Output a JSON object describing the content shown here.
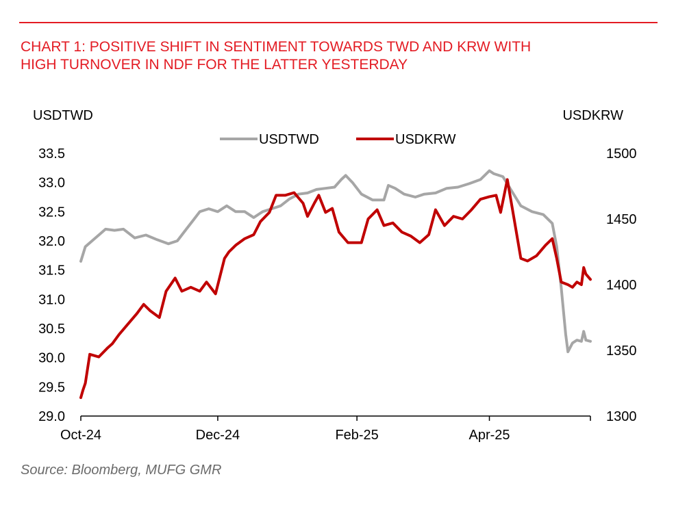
{
  "title_lines": [
    "CHART 1: POSITIVE SHIFT IN SENTIMENT TOWARDS TWD AND KRW WITH",
    "HIGH TURNOVER IN NDF FOR THE LATTER YESTERDAY"
  ],
  "source": "Source: Bloomberg, MUFG GMR",
  "colors": {
    "accent": "#e31b23",
    "usdtwd": "#a6a6a6",
    "usdkrw": "#c00000"
  },
  "chart_data": {
    "type": "line",
    "left_axis_label": "USDTWD",
    "right_axis_label": "USDKRW",
    "left_ylim": [
      29.0,
      33.5
    ],
    "left_ticks": [
      "33.5",
      "33.0",
      "32.5",
      "32.0",
      "31.5",
      "31.0",
      "30.5",
      "30.0",
      "29.5",
      "29.0"
    ],
    "right_ylim": [
      1300,
      1500
    ],
    "right_ticks": [
      "1500",
      "1450",
      "1400",
      "1350",
      "1300"
    ],
    "x_ticks": [
      "Oct-24",
      "Dec-24",
      "Feb-25",
      "Apr-25"
    ],
    "x_tick_dates": [
      "2024-10-01",
      "2024-12-01",
      "2025-02-01",
      "2025-04-01"
    ],
    "x_range": [
      "2024-10-01",
      "2025-05-16"
    ],
    "legend_position": "top-center",
    "grid": false,
    "series": [
      {
        "name": "USDTWD",
        "axis": "left",
        "points": [
          [
            "2024-10-01",
            31.65
          ],
          [
            "2024-10-03",
            31.9
          ],
          [
            "2024-10-06",
            32.0
          ],
          [
            "2024-10-09",
            32.1
          ],
          [
            "2024-10-12",
            32.2
          ],
          [
            "2024-10-16",
            32.18
          ],
          [
            "2024-10-20",
            32.2
          ],
          [
            "2024-10-25",
            32.05
          ],
          [
            "2024-10-30",
            32.1
          ],
          [
            "2024-11-04",
            32.02
          ],
          [
            "2024-11-09",
            31.95
          ],
          [
            "2024-11-13",
            32.0
          ],
          [
            "2024-11-17",
            32.2
          ],
          [
            "2024-11-20",
            32.35
          ],
          [
            "2024-11-23",
            32.5
          ],
          [
            "2024-11-27",
            32.55
          ],
          [
            "2024-12-01",
            32.5
          ],
          [
            "2024-12-05",
            32.6
          ],
          [
            "2024-12-09",
            32.5
          ],
          [
            "2024-12-13",
            32.5
          ],
          [
            "2024-12-17",
            32.4
          ],
          [
            "2024-12-21",
            32.5
          ],
          [
            "2024-12-25",
            32.55
          ],
          [
            "2024-12-29",
            32.6
          ],
          [
            "2025-01-02",
            32.72
          ],
          [
            "2025-01-06",
            32.8
          ],
          [
            "2025-01-10",
            32.82
          ],
          [
            "2025-01-14",
            32.88
          ],
          [
            "2025-01-18",
            32.9
          ],
          [
            "2025-01-22",
            32.92
          ],
          [
            "2025-01-25",
            33.05
          ],
          [
            "2025-01-27",
            33.12
          ],
          [
            "2025-01-30",
            33.0
          ],
          [
            "2025-02-03",
            32.8
          ],
          [
            "2025-02-08",
            32.7
          ],
          [
            "2025-02-13",
            32.7
          ],
          [
            "2025-02-15",
            32.95
          ],
          [
            "2025-02-18",
            32.9
          ],
          [
            "2025-02-22",
            32.8
          ],
          [
            "2025-02-27",
            32.75
          ],
          [
            "2025-03-03",
            32.8
          ],
          [
            "2025-03-08",
            32.82
          ],
          [
            "2025-03-13",
            32.9
          ],
          [
            "2025-03-18",
            32.92
          ],
          [
            "2025-03-23",
            32.98
          ],
          [
            "2025-03-28",
            33.05
          ],
          [
            "2025-04-01",
            33.2
          ],
          [
            "2025-04-03",
            33.15
          ],
          [
            "2025-04-07",
            33.1
          ],
          [
            "2025-04-11",
            32.85
          ],
          [
            "2025-04-15",
            32.6
          ],
          [
            "2025-04-20",
            32.5
          ],
          [
            "2025-04-25",
            32.45
          ],
          [
            "2025-04-29",
            32.3
          ],
          [
            "2025-05-01",
            31.9
          ],
          [
            "2025-05-03",
            31.2
          ],
          [
            "2025-05-05",
            30.4
          ],
          [
            "2025-05-06",
            30.1
          ],
          [
            "2025-05-08",
            30.25
          ],
          [
            "2025-05-10",
            30.3
          ],
          [
            "2025-05-12",
            30.28
          ],
          [
            "2025-05-13",
            30.45
          ],
          [
            "2025-05-14",
            30.3
          ],
          [
            "2025-05-16",
            30.28
          ]
        ]
      },
      {
        "name": "USDKRW",
        "axis": "right",
        "points": [
          [
            "2024-10-01",
            1314
          ],
          [
            "2024-10-02",
            1320
          ],
          [
            "2024-10-03",
            1325
          ],
          [
            "2024-10-05",
            1347
          ],
          [
            "2024-10-09",
            1345
          ],
          [
            "2024-10-13",
            1352
          ],
          [
            "2024-10-15",
            1355
          ],
          [
            "2024-10-18",
            1362
          ],
          [
            "2024-10-22",
            1370
          ],
          [
            "2024-10-26",
            1378
          ],
          [
            "2024-10-29",
            1385
          ],
          [
            "2024-11-01",
            1380
          ],
          [
            "2024-11-05",
            1375
          ],
          [
            "2024-11-08",
            1395
          ],
          [
            "2024-11-10",
            1400
          ],
          [
            "2024-11-12",
            1405
          ],
          [
            "2024-11-15",
            1395
          ],
          [
            "2024-11-19",
            1398
          ],
          [
            "2024-11-23",
            1395
          ],
          [
            "2024-11-26",
            1402
          ],
          [
            "2024-11-30",
            1393
          ],
          [
            "2024-12-04",
            1420
          ],
          [
            "2024-12-06",
            1425
          ],
          [
            "2024-12-09",
            1430
          ],
          [
            "2024-12-13",
            1435
          ],
          [
            "2024-12-17",
            1438
          ],
          [
            "2024-12-20",
            1448
          ],
          [
            "2024-12-24",
            1455
          ],
          [
            "2024-12-27",
            1468
          ],
          [
            "2024-12-31",
            1468
          ],
          [
            "2025-01-04",
            1470
          ],
          [
            "2025-01-08",
            1462
          ],
          [
            "2025-01-10",
            1452
          ],
          [
            "2025-01-13",
            1462
          ],
          [
            "2025-01-15",
            1468
          ],
          [
            "2025-01-18",
            1455
          ],
          [
            "2025-01-21",
            1458
          ],
          [
            "2025-01-24",
            1440
          ],
          [
            "2025-01-28",
            1432
          ],
          [
            "2025-02-03",
            1432
          ],
          [
            "2025-02-06",
            1450
          ],
          [
            "2025-02-10",
            1457
          ],
          [
            "2025-02-13",
            1445
          ],
          [
            "2025-02-17",
            1447
          ],
          [
            "2025-02-21",
            1440
          ],
          [
            "2025-02-25",
            1437
          ],
          [
            "2025-03-01",
            1432
          ],
          [
            "2025-03-05",
            1438
          ],
          [
            "2025-03-08",
            1457
          ],
          [
            "2025-03-12",
            1445
          ],
          [
            "2025-03-16",
            1452
          ],
          [
            "2025-03-20",
            1450
          ],
          [
            "2025-03-24",
            1457
          ],
          [
            "2025-03-28",
            1465
          ],
          [
            "2025-04-01",
            1467
          ],
          [
            "2025-04-04",
            1468
          ],
          [
            "2025-04-06",
            1455
          ],
          [
            "2025-04-09",
            1480
          ],
          [
            "2025-04-12",
            1450
          ],
          [
            "2025-04-15",
            1420
          ],
          [
            "2025-04-18",
            1418
          ],
          [
            "2025-04-22",
            1422
          ],
          [
            "2025-04-26",
            1430
          ],
          [
            "2025-04-29",
            1435
          ],
          [
            "2025-05-01",
            1420
          ],
          [
            "2025-05-03",
            1402
          ],
          [
            "2025-05-06",
            1400
          ],
          [
            "2025-05-08",
            1398
          ],
          [
            "2025-05-10",
            1402
          ],
          [
            "2025-05-12",
            1400
          ],
          [
            "2025-05-13",
            1413
          ],
          [
            "2025-05-14",
            1408
          ],
          [
            "2025-05-16",
            1404
          ]
        ]
      }
    ]
  }
}
